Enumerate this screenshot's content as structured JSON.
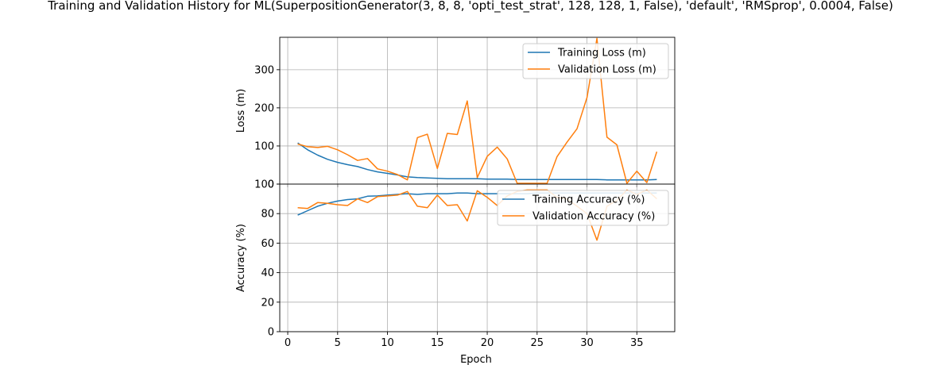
{
  "chart_data": {
    "title": "Training and Validation History for ML(SuperpositionGenerator(3, 8, 8, 'opti_test_strat', 128, 128, 1, False), 'default', 'RMSprop', 0.0004, False)",
    "xlabel": "Epoch",
    "xlim": [
      -0.8,
      38.8
    ],
    "xticks": [
      0,
      5,
      10,
      15,
      20,
      25,
      30,
      35
    ],
    "grid": true,
    "colors": {
      "training": "#1f77b4",
      "validation": "#ff7f0e"
    },
    "panels": [
      {
        "type": "line",
        "ylabel": "Loss (m)",
        "ylim": [
          0,
          385
        ],
        "yticks": [
          0,
          100,
          200,
          300
        ],
        "legend_position": "top-right",
        "x": [
          1,
          2,
          3,
          4,
          5,
          6,
          7,
          8,
          9,
          10,
          11,
          12,
          13,
          14,
          15,
          16,
          17,
          18,
          19,
          20,
          21,
          22,
          23,
          24,
          25,
          26,
          27,
          28,
          29,
          30,
          31,
          32,
          33,
          34,
          35,
          36,
          37
        ],
        "series": [
          {
            "name": "Training Loss (m)",
            "color": "#1f77b4",
            "values": [
              108,
              90,
              76,
              65,
              57,
              51,
              46,
              38,
              32,
              28,
              24,
              19,
              17,
              16,
              15,
              14,
              14,
              14,
              14,
              13,
              13,
              13,
              12,
              12,
              12,
              12,
              12,
              12,
              12,
              12,
              12,
              11,
              11,
              11,
              11,
              11,
              12
            ]
          },
          {
            "name": "Validation Loss (m)",
            "color": "#ff7f0e",
            "values": [
              105,
              98,
              96,
              99,
              90,
              77,
              62,
              67,
              40,
              34,
              25,
              11,
              122,
              131,
              41,
              133,
              130,
              218,
              17,
              73,
              97,
              66,
              2,
              2,
              2,
              2,
              72,
              110,
              145,
              227,
              382,
              123,
              103,
              2,
              34,
              4,
              85
            ]
          }
        ]
      },
      {
        "type": "line",
        "ylabel": "Accuracy (%)",
        "ylim": [
          0,
          100
        ],
        "yticks": [
          0,
          20,
          40,
          60,
          80,
          100
        ],
        "legend_position": "top-right",
        "x": [
          1,
          2,
          3,
          4,
          5,
          6,
          7,
          8,
          9,
          10,
          11,
          12,
          13,
          14,
          15,
          16,
          17,
          18,
          19,
          20,
          21,
          22,
          23,
          24,
          25,
          26,
          27,
          28,
          29,
          30,
          31,
          32,
          33,
          34,
          35,
          36,
          37
        ],
        "series": [
          {
            "name": "Training Accuracy (%)",
            "color": "#1f77b4",
            "values": [
              79,
              82,
              85,
              87,
              88.5,
              89.5,
              90,
              91.8,
              92,
              92.5,
              93,
              93.5,
              93,
              93.5,
              93.5,
              93.5,
              94,
              94,
              93.5,
              93.5,
              93.5,
              93.5,
              93.5,
              93.5,
              94,
              94,
              94,
              94,
              94,
              94,
              94,
              94,
              94,
              94,
              94,
              94,
              94
            ]
          },
          {
            "name": "Validation Accuracy (%)",
            "color": "#ff7f0e",
            "values": [
              84,
              83.5,
              87.5,
              87,
              86,
              85.5,
              90,
              87.5,
              91.5,
              92,
              92.5,
              95,
              85,
              84,
              92.5,
              85.5,
              86,
              75,
              95.5,
              91,
              85.5,
              92,
              95,
              96,
              96,
              96,
              91,
              90,
              85,
              80,
              62,
              85,
              89,
              96,
              93,
              96,
              90
            ]
          }
        ]
      }
    ]
  }
}
